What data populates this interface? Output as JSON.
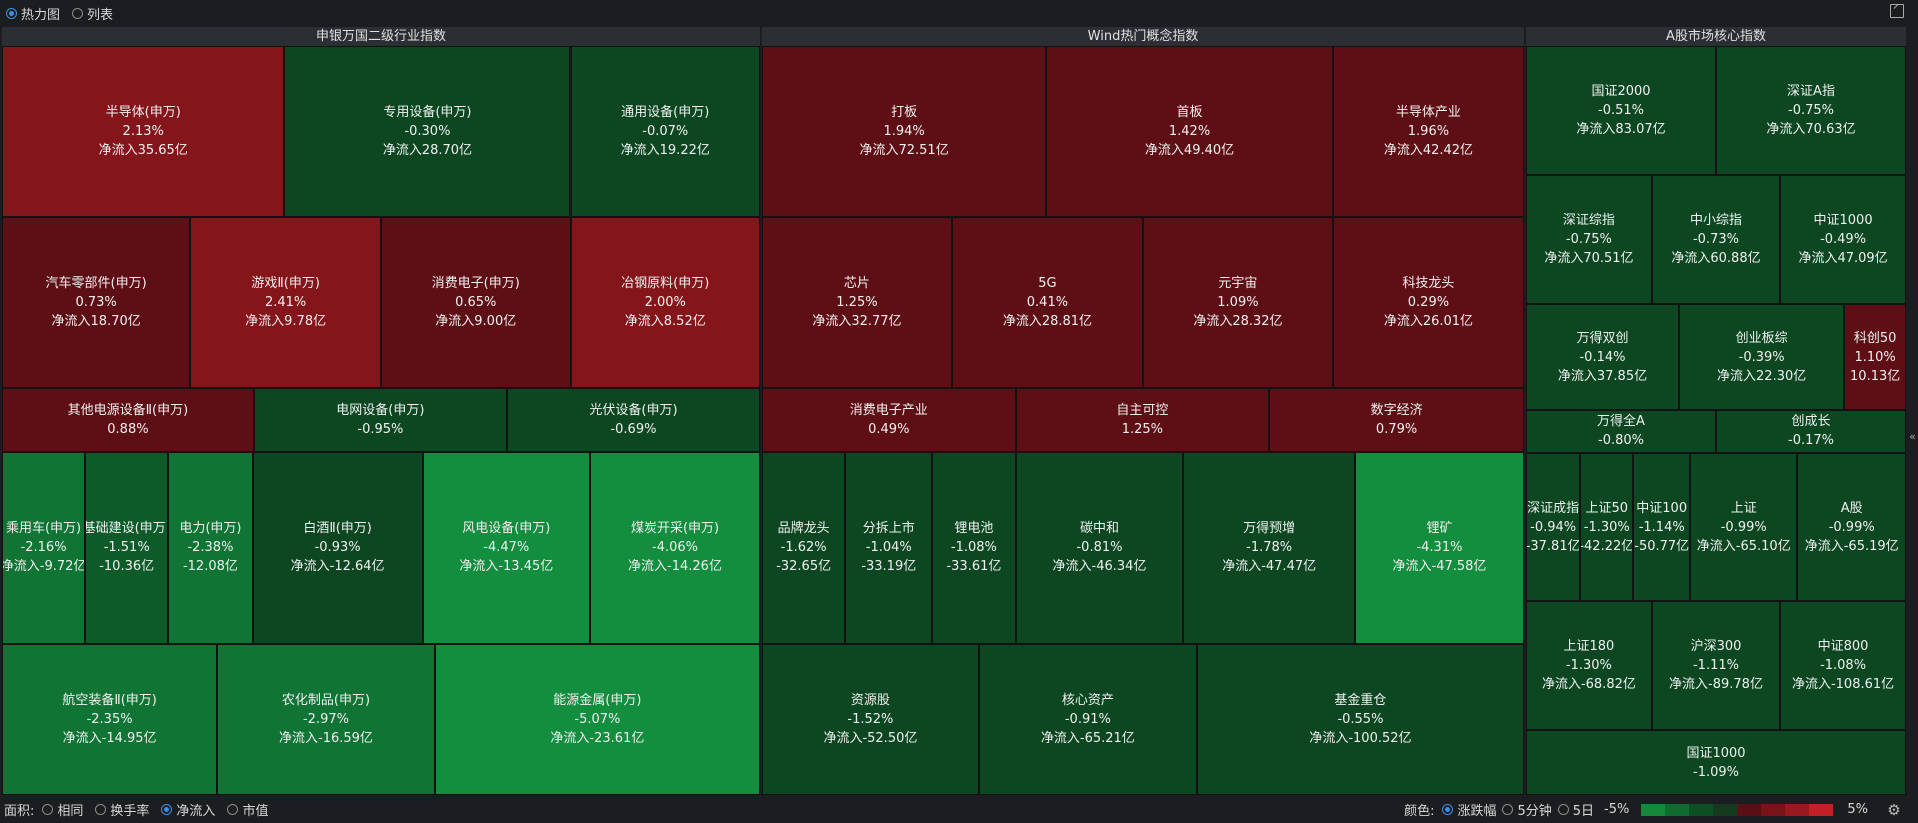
{
  "topbar": {
    "view_options": [
      {
        "label": "热力图",
        "selected": true
      },
      {
        "label": "列表",
        "selected": false
      }
    ]
  },
  "footer": {
    "area_label": "面积:",
    "area_options": [
      {
        "label": "相同",
        "selected": false
      },
      {
        "label": "换手率",
        "selected": false
      },
      {
        "label": "净流入",
        "selected": true
      },
      {
        "label": "市值",
        "selected": false
      }
    ],
    "color_label": "颜色:",
    "color_options": [
      {
        "label": "涨跌幅",
        "selected": true
      },
      {
        "label": "5分钟",
        "selected": false
      },
      {
        "label": "5日",
        "selected": false
      }
    ],
    "legend_min": "-5%",
    "legend_max": "5%",
    "legend_colors": [
      "#138a3b",
      "#0f6b2f",
      "#0d4e23",
      "#163a1f",
      "#5a0f16",
      "#7a1219",
      "#9a1820",
      "#c21f26"
    ]
  },
  "panels": [
    {
      "id": "sw",
      "title": "申银万国二级行业指数",
      "tiles": [
        {
          "name": "半导体(申万)",
          "change": "2.13%",
          "flow": "净流入35.65亿",
          "color": "#84161b"
        },
        {
          "name": "专用设备(申万)",
          "change": "-0.30%",
          "flow": "净流入28.70亿",
          "color": "#0d4722"
        },
        {
          "name": "通用设备(申万)",
          "change": "-0.07%",
          "flow": "净流入19.22亿",
          "color": "#0d4722"
        },
        {
          "name": "汽车零部件(申万)",
          "change": "0.73%",
          "flow": "净流入18.70亿",
          "color": "#5e0f15"
        },
        {
          "name": "游戏Ⅱ(申万)",
          "change": "2.41%",
          "flow": "净流入9.78亿",
          "color": "#84161b"
        },
        {
          "name": "消费电子(申万)",
          "change": "0.65%",
          "flow": "净流入9.00亿",
          "color": "#5e0f15"
        },
        {
          "name": "冶钢原料(申万)",
          "change": "2.00%",
          "flow": "净流入8.52亿",
          "color": "#84161b"
        },
        {
          "name": "其他电源设备Ⅱ(申万)",
          "change": "0.88%",
          "flow": "",
          "color": "#5e0f15"
        },
        {
          "name": "电网设备(申万)",
          "change": "-0.95%",
          "flow": "",
          "color": "#0d4722"
        },
        {
          "name": "光伏设备(申万)",
          "change": "-0.69%",
          "flow": "",
          "color": "#0d4722"
        },
        {
          "name": "乘用车(申万)",
          "change": "-2.16%",
          "flow": "净流入-9.72亿",
          "color": "#107435"
        },
        {
          "name": "基础建设(申万)",
          "change": "-1.51%",
          "flow": "-10.36亿",
          "color": "#0e5b2a"
        },
        {
          "name": "电力(申万)",
          "change": "-2.38%",
          "flow": "-12.08亿",
          "color": "#107435"
        },
        {
          "name": "白酒Ⅱ(申万)",
          "change": "-0.93%",
          "flow": "净流入-12.64亿",
          "color": "#0d4722"
        },
        {
          "name": "风电设备(申万)",
          "change": "-4.47%",
          "flow": "净流入-13.45亿",
          "color": "#138d3e"
        },
        {
          "name": "煤炭开采(申万)",
          "change": "-4.06%",
          "flow": "净流入-14.26亿",
          "color": "#138d3e"
        },
        {
          "name": "航空装备Ⅱ(申万)",
          "change": "-2.35%",
          "flow": "净流入-14.95亿",
          "color": "#107435"
        },
        {
          "name": "农化制品(申万)",
          "change": "-2.97%",
          "flow": "净流入-16.59亿",
          "color": "#107435"
        },
        {
          "name": "能源金属(申万)",
          "change": "-5.07%",
          "flow": "净流入-23.61亿",
          "color": "#138d3e"
        }
      ]
    },
    {
      "id": "wind",
      "title": "Wind热门概念指数",
      "tiles": [
        {
          "name": "打板",
          "change": "1.94%",
          "flow": "净流入72.51亿",
          "color": "#5e0f15"
        },
        {
          "name": "首板",
          "change": "1.42%",
          "flow": "净流入49.40亿",
          "color": "#5e0f15"
        },
        {
          "name": "半导体产业",
          "change": "1.96%",
          "flow": "净流入42.42亿",
          "color": "#5e0f15"
        },
        {
          "name": "芯片",
          "change": "1.25%",
          "flow": "净流入32.77亿",
          "color": "#5e0f15"
        },
        {
          "name": "5G",
          "change": "0.41%",
          "flow": "净流入28.81亿",
          "color": "#5e0f15"
        },
        {
          "name": "元宇宙",
          "change": "1.09%",
          "flow": "净流入28.32亿",
          "color": "#5e0f15"
        },
        {
          "name": "科技龙头",
          "change": "0.29%",
          "flow": "净流入26.01亿",
          "color": "#5e0f15"
        },
        {
          "name": "消费电子产业",
          "change": "0.49%",
          "flow": "",
          "color": "#5e0f15"
        },
        {
          "name": "自主可控",
          "change": "1.25%",
          "flow": "",
          "color": "#5e0f15"
        },
        {
          "name": "数字经济",
          "change": "0.79%",
          "flow": "",
          "color": "#5e0f15"
        },
        {
          "name": "品牌龙头",
          "change": "-1.62%",
          "flow": "-32.65亿",
          "color": "#0d4722"
        },
        {
          "name": "分拆上市",
          "change": "-1.04%",
          "flow": "-33.19亿",
          "color": "#0d4722"
        },
        {
          "name": "锂电池",
          "change": "-1.08%",
          "flow": "-33.61亿",
          "color": "#0d4722"
        },
        {
          "name": "碳中和",
          "change": "-0.81%",
          "flow": "净流入-46.34亿",
          "color": "#0d4722"
        },
        {
          "name": "万得预增",
          "change": "-1.78%",
          "flow": "净流入-47.47亿",
          "color": "#0d4722"
        },
        {
          "name": "锂矿",
          "change": "-4.31%",
          "flow": "净流入-47.58亿",
          "color": "#138d3e"
        },
        {
          "name": "资源股",
          "change": "-1.52%",
          "flow": "净流入-52.50亿",
          "color": "#0d4722"
        },
        {
          "name": "核心资产",
          "change": "-0.91%",
          "flow": "净流入-65.21亿",
          "color": "#0d4722"
        },
        {
          "name": "基金重仓",
          "change": "-0.55%",
          "flow": "净流入-100.52亿",
          "color": "#0d4722"
        }
      ]
    },
    {
      "id": "core",
      "title": "A股市场核心指数",
      "tiles": [
        {
          "name": "国证2000",
          "change": "-0.51%",
          "flow": "净流入83.07亿",
          "color": "#0d4722"
        },
        {
          "name": "深证A指",
          "change": "-0.75%",
          "flow": "净流入70.63亿",
          "color": "#0d4722"
        },
        {
          "name": "深证综指",
          "change": "-0.75%",
          "flow": "净流入70.51亿",
          "color": "#0d4722"
        },
        {
          "name": "中小综指",
          "change": "-0.73%",
          "flow": "净流入60.88亿",
          "color": "#0d4722"
        },
        {
          "name": "中证1000",
          "change": "-0.49%",
          "flow": "净流入47.09亿",
          "color": "#0d4722"
        },
        {
          "name": "万得双创",
          "change": "-0.14%",
          "flow": "净流入37.85亿",
          "color": "#0d4722"
        },
        {
          "name": "创业板综",
          "change": "-0.39%",
          "flow": "净流入22.30亿",
          "color": "#0d4722"
        },
        {
          "name": "科创50",
          "change": "1.10%",
          "flow": "10.13亿",
          "color": "#5e0f15"
        },
        {
          "name": "万得全A",
          "change": "-0.80%",
          "flow": "",
          "color": "#0d4722"
        },
        {
          "name": "创成长",
          "change": "-0.17%",
          "flow": "",
          "color": "#0d4722"
        },
        {
          "name": "深证成指",
          "change": "-0.94%",
          "flow": "-37.81亿",
          "color": "#0d4722"
        },
        {
          "name": "上证50",
          "change": "-1.30%",
          "flow": "-42.22亿",
          "color": "#0d4722"
        },
        {
          "name": "中证100",
          "change": "-1.14%",
          "flow": "-50.77亿",
          "color": "#0d4722"
        },
        {
          "name": "上证",
          "change": "-0.99%",
          "flow": "净流入-65.10亿",
          "color": "#0d4722"
        },
        {
          "name": "A股",
          "change": "-0.99%",
          "flow": "净流入-65.19亿",
          "color": "#0d4722"
        },
        {
          "name": "上证180",
          "change": "-1.30%",
          "flow": "净流入-68.82亿",
          "color": "#0d4722"
        },
        {
          "name": "沪深300",
          "change": "-1.11%",
          "flow": "净流入-89.78亿",
          "color": "#0d4722"
        },
        {
          "name": "中证800",
          "change": "-1.08%",
          "flow": "净流入-108.61亿",
          "color": "#0d4722"
        },
        {
          "name": "国证1000",
          "change": "-1.09%",
          "flow": "",
          "color": "#0d4722"
        }
      ]
    }
  ]
}
